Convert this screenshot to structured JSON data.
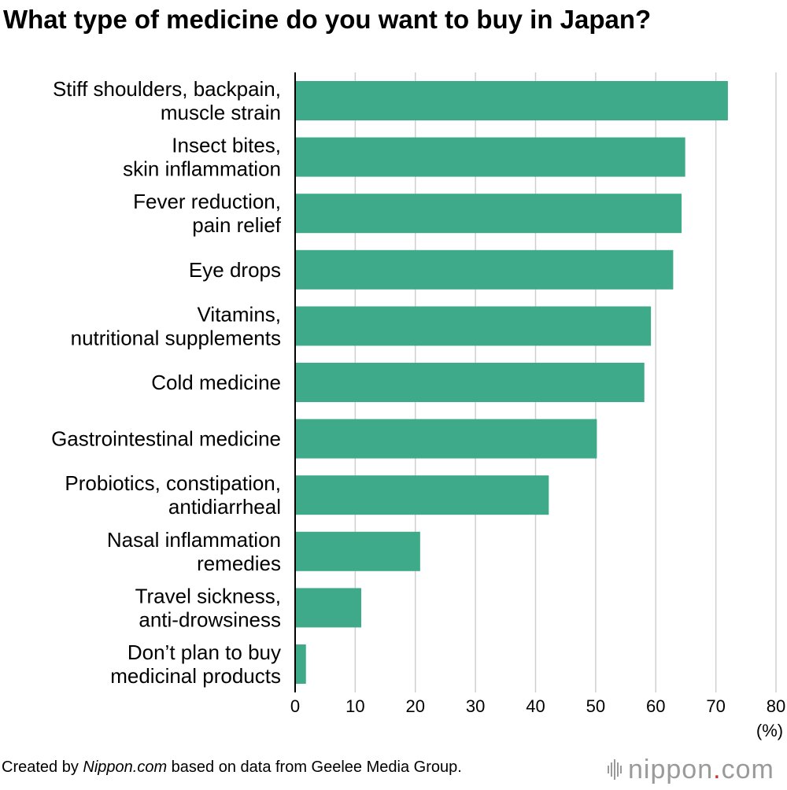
{
  "footer": {
    "prefix": "Created by ",
    "source_name": "Nippon.com",
    "suffix": " based on data from Geelee Media Group."
  },
  "logo": {
    "name": "nippon",
    "dot": ".",
    "tld": "com"
  },
  "colors": {
    "bar": "#3faa8a",
    "grid": "#cfcfcf",
    "axis": "#000000"
  },
  "chart_data": {
    "type": "bar",
    "orientation": "horizontal",
    "title": "What type of medicine do you want to buy in Japan?",
    "unit_label": "(%)",
    "xlim": [
      0,
      80
    ],
    "xticks": [
      0,
      10,
      20,
      30,
      40,
      50,
      60,
      70,
      80
    ],
    "grid": true,
    "categories": [
      [
        "Stiff shoulders, backpain,",
        "muscle strain"
      ],
      [
        "Insect bites,",
        "skin inflammation"
      ],
      [
        "Fever reduction,",
        "pain relief"
      ],
      [
        "Eye drops"
      ],
      [
        "Vitamins,",
        "nutritional supplements"
      ],
      [
        "Cold medicine"
      ],
      [
        "Gastrointestinal medicine"
      ],
      [
        "Probiotics, constipation,",
        "antidiarrheal"
      ],
      [
        "Nasal inflammation",
        "remedies"
      ],
      [
        "Travel sickness,",
        "anti-drowsiness"
      ],
      [
        "Don’t plan to buy",
        "medicinal products"
      ]
    ],
    "values": [
      72.0,
      64.9,
      64.3,
      62.9,
      59.2,
      58.1,
      50.2,
      42.2,
      20.8,
      11.0,
      1.8
    ]
  }
}
